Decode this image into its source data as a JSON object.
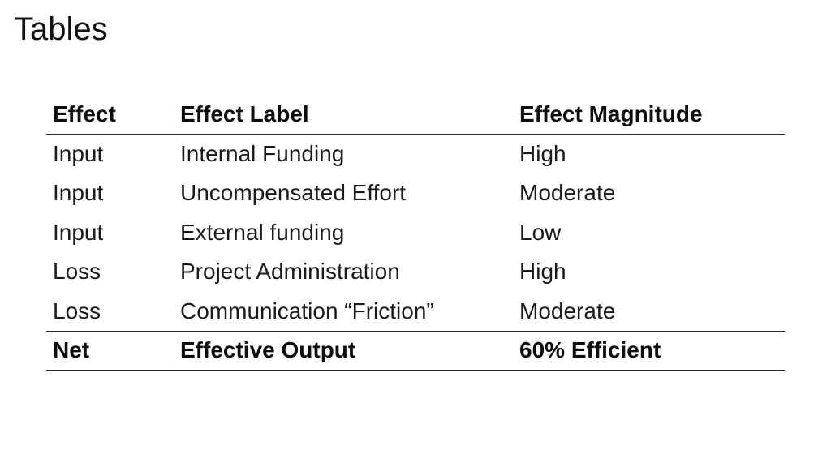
{
  "slide": {
    "title": "Tables"
  },
  "table": {
    "columns": {
      "effect": "Effect",
      "label": "Effect Label",
      "magnitude": "Effect Magnitude"
    },
    "rows": [
      {
        "effect": "Input",
        "label": "Internal Funding",
        "magnitude": "High"
      },
      {
        "effect": "Input",
        "label": "Uncompensated Effort",
        "magnitude": "Moderate"
      },
      {
        "effect": "Input",
        "label": "External funding",
        "magnitude": "Low"
      },
      {
        "effect": "Loss",
        "label": "Project Administration",
        "magnitude": "High"
      },
      {
        "effect": "Loss",
        "label": "Communication “Friction”",
        "magnitude": "Moderate"
      }
    ],
    "footer": {
      "effect": "Net",
      "label": "Effective Output",
      "magnitude": "60% Efficient"
    }
  },
  "colors": {
    "background": "#ffffff",
    "text": "#1a1a1a",
    "rule": "#2b2b2b"
  }
}
